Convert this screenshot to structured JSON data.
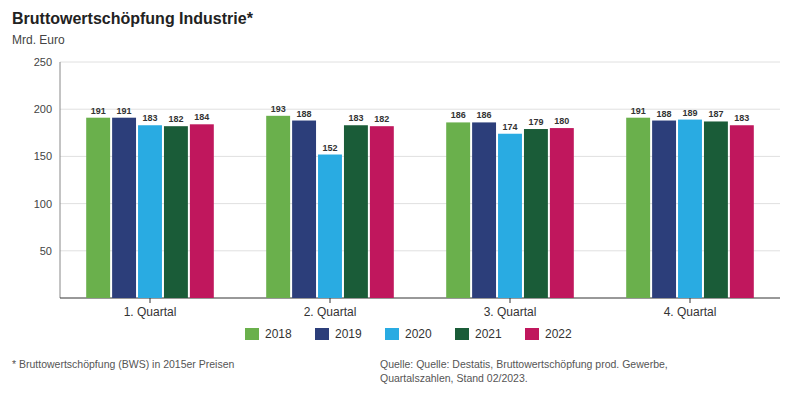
{
  "chart_data": {
    "type": "bar",
    "title": "Bruttowertschöpfung Industrie*",
    "y_label": "Mrd. Euro",
    "categories": [
      "1. Quartal",
      "2. Quartal",
      "3. Quartal",
      "4. Quartal"
    ],
    "series": [
      {
        "name": "2018",
        "color": "#6ab04c",
        "values": [
          191,
          193,
          186,
          191
        ]
      },
      {
        "name": "2019",
        "color": "#2c3e7a",
        "values": [
          191,
          188,
          186,
          188
        ]
      },
      {
        "name": "2020",
        "color": "#29abe2",
        "values": [
          183,
          152,
          174,
          189
        ]
      },
      {
        "name": "2021",
        "color": "#1a5c38",
        "values": [
          182,
          183,
          179,
          187
        ]
      },
      {
        "name": "2022",
        "color": "#c0175d",
        "values": [
          184,
          182,
          180,
          183
        ]
      }
    ],
    "ylim": [
      0,
      250
    ],
    "yticks": [
      50,
      100,
      150,
      200,
      250
    ],
    "grid": true,
    "legend": "bottom",
    "data_labels": true,
    "annotations": [
      "* Bruttowertschöpfung (BWS) in 2015er Preisen",
      "Quelle: Quelle: Destatis, Bruttowertschöpfung prod. Gewerbe,\nQuartalszahlen, Stand 02/2023."
    ]
  }
}
